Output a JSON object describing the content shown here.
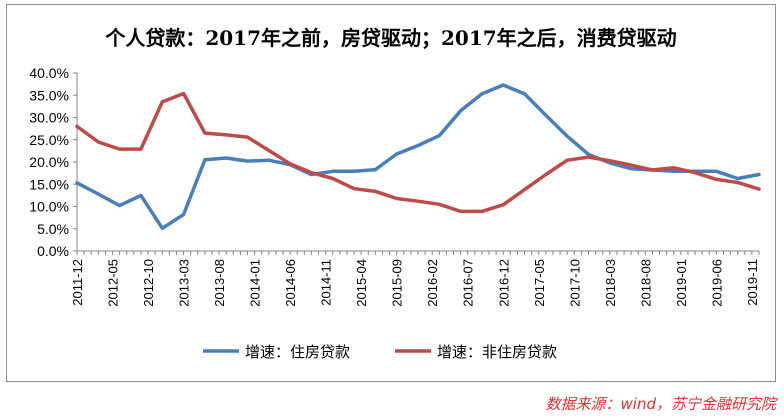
{
  "chart_data": {
    "type": "line",
    "title": "个人贷款：2017年之前，房贷驱动；2017年之后，消费贷驱动",
    "xlabel": "",
    "ylabel": "",
    "ylim": [
      0,
      0.4
    ],
    "y_ticks": [
      "0.0%",
      "5.0%",
      "10.0%",
      "15.0%",
      "20.0%",
      "25.0%",
      "30.0%",
      "35.0%",
      "40.0%"
    ],
    "x_tick_labels": [
      "2011-12",
      "2012-05",
      "2012-10",
      "2013-03",
      "2013-08",
      "2014-01",
      "2014-06",
      "2014-11",
      "2015-04",
      "2015-09",
      "2016-02",
      "2016-07",
      "2016-12",
      "2017-05",
      "2017-10",
      "2018-03",
      "2018-08",
      "2019-01",
      "2019-06",
      "2019-11"
    ],
    "x": [
      "2011-12",
      "2012-03",
      "2012-06",
      "2012-09",
      "2012-12",
      "2013-03",
      "2013-06",
      "2013-09",
      "2013-12",
      "2014-03",
      "2014-06",
      "2014-09",
      "2014-12",
      "2015-03",
      "2015-06",
      "2015-09",
      "2015-12",
      "2016-03",
      "2016-06",
      "2016-09",
      "2016-12",
      "2017-03",
      "2017-06",
      "2017-09",
      "2017-12",
      "2018-03",
      "2018-06",
      "2018-09",
      "2018-12",
      "2019-03",
      "2019-06",
      "2019-09",
      "2019-12"
    ],
    "series": [
      {
        "name": "增速：住房贷款",
        "color": "#4a7ebb",
        "values": [
          0.153,
          0.128,
          0.102,
          0.125,
          0.051,
          0.082,
          0.205,
          0.209,
          0.202,
          0.204,
          0.194,
          0.172,
          0.179,
          0.179,
          0.183,
          0.218,
          0.237,
          0.259,
          0.315,
          0.353,
          0.373,
          0.353,
          0.305,
          0.258,
          0.217,
          0.198,
          0.185,
          0.182,
          0.179,
          0.179,
          0.179,
          0.163,
          0.172
        ]
      },
      {
        "name": "增速：非住房贷款",
        "color": "#be4b48",
        "values": [
          0.28,
          0.245,
          0.229,
          0.229,
          0.335,
          0.354,
          0.265,
          0.261,
          0.256,
          0.226,
          0.196,
          0.176,
          0.163,
          0.14,
          0.134,
          0.118,
          0.112,
          0.105,
          0.089,
          0.089,
          0.104,
          0.138,
          0.172,
          0.204,
          0.211,
          0.203,
          0.193,
          0.182,
          0.187,
          0.176,
          0.161,
          0.154,
          0.139
        ]
      }
    ],
    "grid": false,
    "legend": "bottom"
  },
  "source_note": "数据来源：wind，苏宁金融研究院"
}
